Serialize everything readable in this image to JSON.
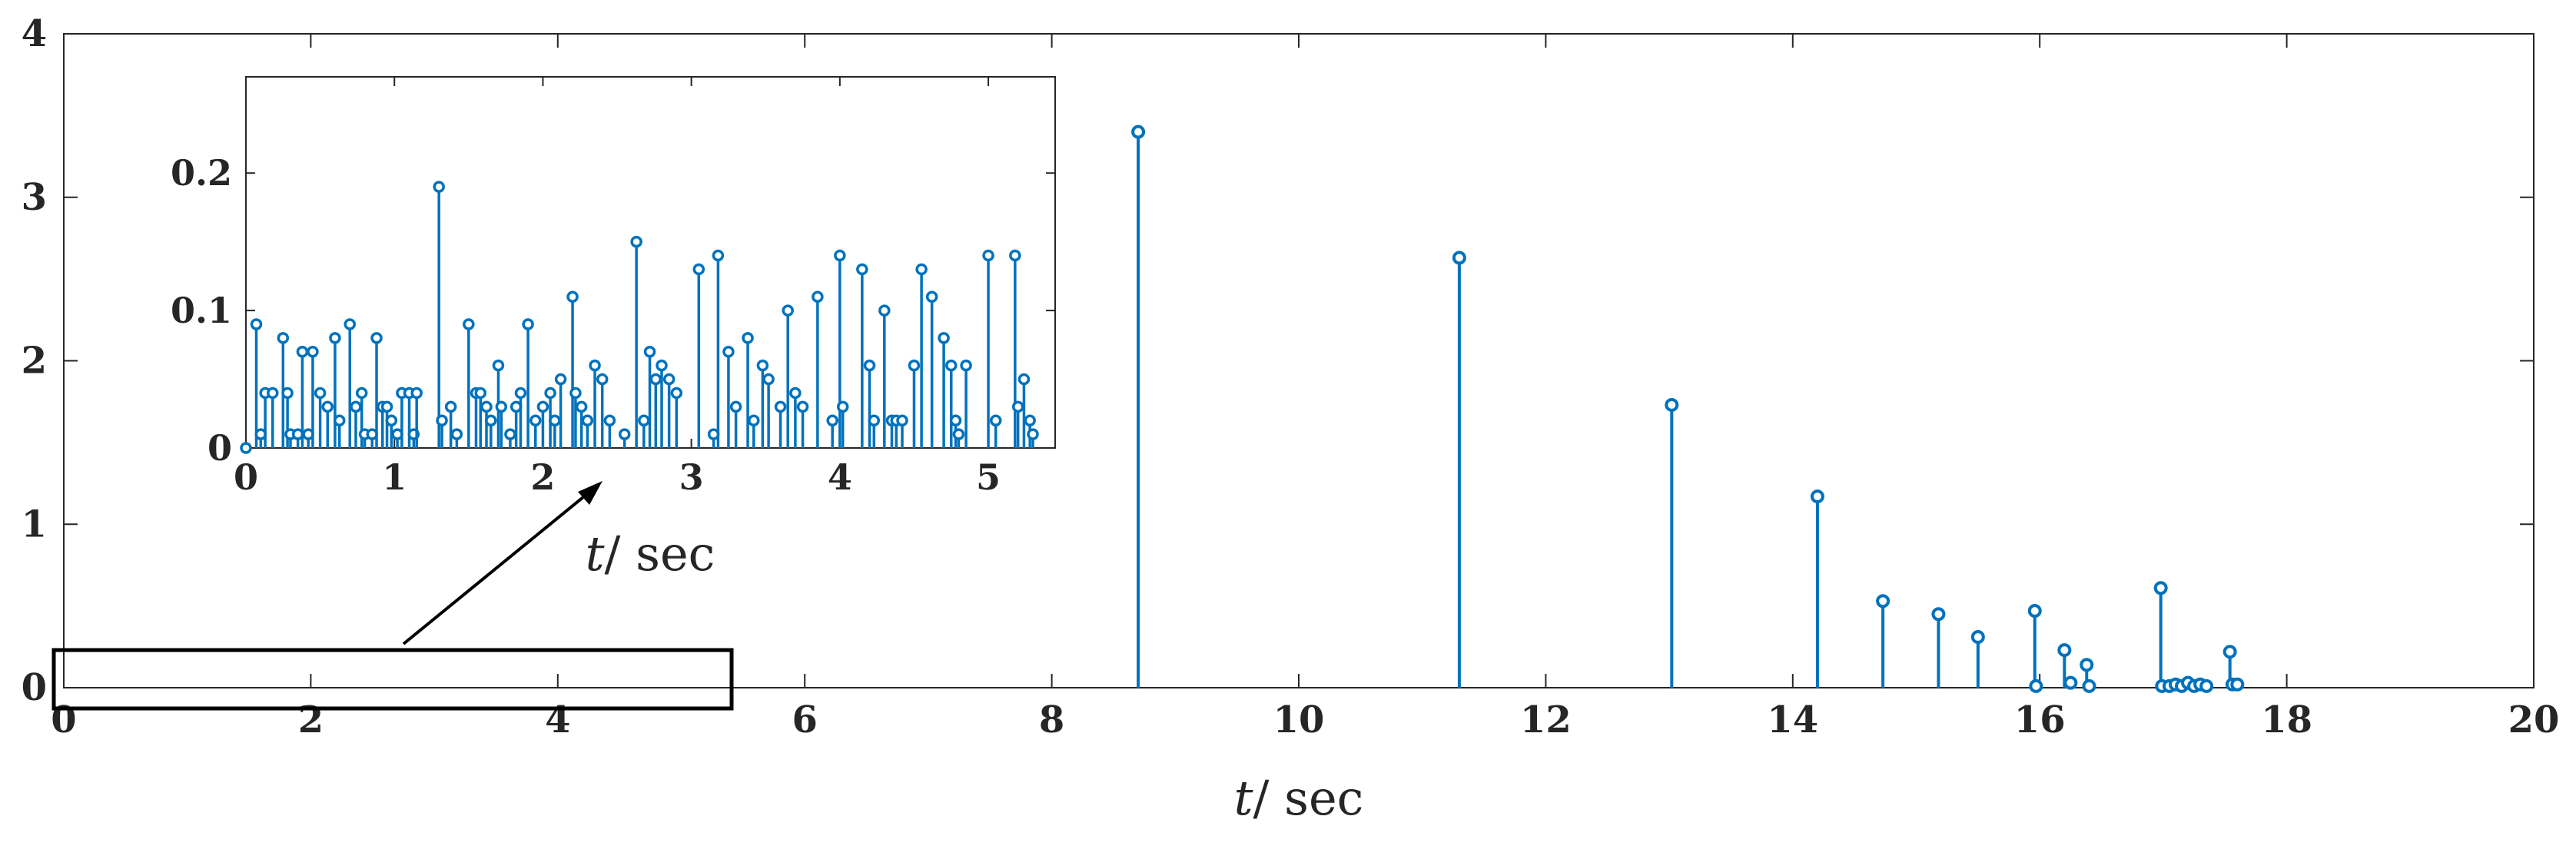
{
  "chart_data": [
    {
      "type": "stem",
      "name": "main",
      "xlabel": {
        "var": "t",
        "unit": "/ sec"
      },
      "xlim": [
        0,
        20
      ],
      "ylim": [
        0,
        4
      ],
      "xticks": [
        0,
        2,
        4,
        6,
        8,
        10,
        12,
        14,
        16,
        18,
        20
      ],
      "yticks": [
        0,
        1,
        2,
        3,
        4
      ],
      "xtick_labels": [
        "0",
        "2",
        "4",
        "6",
        "8",
        "10",
        "12",
        "14",
        "16",
        "18",
        "20"
      ],
      "ytick_labels": [
        "0",
        "1",
        "2",
        "3",
        "4"
      ],
      "color": "#0072BD",
      "points": [
        [
          8.7,
          3.4
        ],
        [
          11.3,
          2.63
        ],
        [
          13.02,
          1.73
        ],
        [
          14.2,
          1.17
        ],
        [
          14.73,
          0.53
        ],
        [
          15.18,
          0.45
        ],
        [
          15.5,
          0.31
        ],
        [
          15.96,
          0.47
        ],
        [
          15.97,
          0.01
        ],
        [
          16.2,
          0.23
        ],
        [
          16.25,
          0.03
        ],
        [
          16.38,
          0.14
        ],
        [
          16.4,
          0.01
        ],
        [
          16.98,
          0.61
        ],
        [
          16.99,
          0.01
        ],
        [
          17.05,
          0.01
        ],
        [
          17.1,
          0.02
        ],
        [
          17.15,
          0.01
        ],
        [
          17.2,
          0.03
        ],
        [
          17.25,
          0.01
        ],
        [
          17.3,
          0.02
        ],
        [
          17.35,
          0.01
        ],
        [
          17.54,
          0.22
        ],
        [
          17.56,
          0.02
        ],
        [
          17.6,
          0.02
        ]
      ]
    },
    {
      "type": "stem",
      "name": "inset",
      "xlabel": {
        "var": "t",
        "unit": "/ sec"
      },
      "xlim": [
        0,
        5.45
      ],
      "ylim": [
        0,
        0.27
      ],
      "xticks": [
        0,
        1,
        2,
        3,
        4,
        5
      ],
      "yticks": [
        0,
        0.1,
        0.2
      ],
      "xtick_labels": [
        "0",
        "1",
        "2",
        "3",
        "4",
        "5"
      ],
      "ytick_labels": [
        "0",
        "0.1",
        "0.2"
      ],
      "color": "#0072BD",
      "points": [
        [
          0,
          0.0
        ],
        [
          0.07,
          0.09
        ],
        [
          0.1,
          0.01
        ],
        [
          0.13,
          0.04
        ],
        [
          0.18,
          0.04
        ],
        [
          0.25,
          0.08
        ],
        [
          0.28,
          0.04
        ],
        [
          0.3,
          0.01
        ],
        [
          0.35,
          0.01
        ],
        [
          0.38,
          0.07
        ],
        [
          0.42,
          0.01
        ],
        [
          0.45,
          0.07
        ],
        [
          0.5,
          0.04
        ],
        [
          0.55,
          0.03
        ],
        [
          0.6,
          0.08
        ],
        [
          0.63,
          0.02
        ],
        [
          0.7,
          0.09
        ],
        [
          0.74,
          0.03
        ],
        [
          0.78,
          0.04
        ],
        [
          0.8,
          0.01
        ],
        [
          0.85,
          0.01
        ],
        [
          0.88,
          0.08
        ],
        [
          0.92,
          0.03
        ],
        [
          0.95,
          0.03
        ],
        [
          0.98,
          0.02
        ],
        [
          1.02,
          0.01
        ],
        [
          1.05,
          0.04
        ],
        [
          1.1,
          0.04
        ],
        [
          1.13,
          0.01
        ],
        [
          1.15,
          0.04
        ],
        [
          1.3,
          0.19
        ],
        [
          1.32,
          0.02
        ],
        [
          1.38,
          0.03
        ],
        [
          1.42,
          0.01
        ],
        [
          1.5,
          0.09
        ],
        [
          1.55,
          0.04
        ],
        [
          1.58,
          0.04
        ],
        [
          1.62,
          0.03
        ],
        [
          1.65,
          0.02
        ],
        [
          1.7,
          0.06
        ],
        [
          1.72,
          0.03
        ],
        [
          1.78,
          0.01
        ],
        [
          1.82,
          0.03
        ],
        [
          1.85,
          0.04
        ],
        [
          1.9,
          0.09
        ],
        [
          1.95,
          0.02
        ],
        [
          2.0,
          0.03
        ],
        [
          2.05,
          0.04
        ],
        [
          2.08,
          0.02
        ],
        [
          2.12,
          0.05
        ],
        [
          2.2,
          0.11
        ],
        [
          2.22,
          0.04
        ],
        [
          2.26,
          0.03
        ],
        [
          2.3,
          0.02
        ],
        [
          2.35,
          0.06
        ],
        [
          2.4,
          0.05
        ],
        [
          2.45,
          0.02
        ],
        [
          2.55,
          0.01
        ],
        [
          2.63,
          0.15
        ],
        [
          2.68,
          0.02
        ],
        [
          2.72,
          0.07
        ],
        [
          2.76,
          0.05
        ],
        [
          2.8,
          0.06
        ],
        [
          2.85,
          0.05
        ],
        [
          2.9,
          0.04
        ],
        [
          3.05,
          0.13
        ],
        [
          3.15,
          0.01
        ],
        [
          3.18,
          0.14
        ],
        [
          3.25,
          0.07
        ],
        [
          3.3,
          0.03
        ],
        [
          3.38,
          0.08
        ],
        [
          3.42,
          0.02
        ],
        [
          3.48,
          0.06
        ],
        [
          3.52,
          0.05
        ],
        [
          3.6,
          0.03
        ],
        [
          3.65,
          0.1
        ],
        [
          3.7,
          0.04
        ],
        [
          3.75,
          0.03
        ],
        [
          3.85,
          0.11
        ],
        [
          3.95,
          0.02
        ],
        [
          4.0,
          0.14
        ],
        [
          4.02,
          0.03
        ],
        [
          4.15,
          0.13
        ],
        [
          4.2,
          0.06
        ],
        [
          4.23,
          0.02
        ],
        [
          4.3,
          0.1
        ],
        [
          4.35,
          0.02
        ],
        [
          4.38,
          0.02
        ],
        [
          4.42,
          0.02
        ],
        [
          4.5,
          0.06
        ],
        [
          4.55,
          0.13
        ],
        [
          4.62,
          0.11
        ],
        [
          4.7,
          0.08
        ],
        [
          4.75,
          0.06
        ],
        [
          4.78,
          0.02
        ],
        [
          4.8,
          0.01
        ],
        [
          4.85,
          0.06
        ],
        [
          5.0,
          0.14
        ],
        [
          5.05,
          0.02
        ],
        [
          5.18,
          0.14
        ],
        [
          5.2,
          0.03
        ],
        [
          5.24,
          0.05
        ],
        [
          5.28,
          0.02
        ],
        [
          5.3,
          0.01
        ]
      ]
    }
  ]
}
